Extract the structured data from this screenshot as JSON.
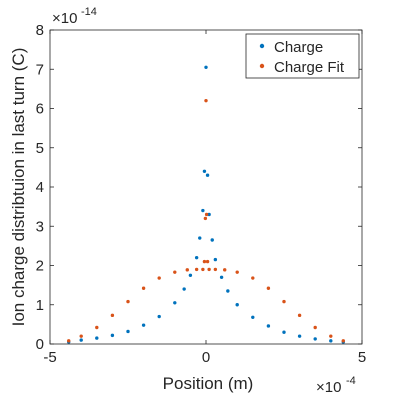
{
  "chart_data": {
    "type": "scatter",
    "title": "",
    "xlabel": "Position (m)",
    "ylabel": "Ion charge distribtuion in last turn (C)",
    "xlim": [
      -0.0005,
      0.0005
    ],
    "ylim": [
      0,
      8e-14
    ],
    "x_ticks": [
      -5,
      0,
      5
    ],
    "x_tick_labels": [
      "-5",
      "0",
      "5"
    ],
    "y_ticks": [
      0,
      1,
      2,
      3,
      4,
      5,
      6,
      7,
      8
    ],
    "y_tick_labels": [
      "0",
      "1",
      "2",
      "3",
      "4",
      "5",
      "6",
      "7",
      "8"
    ],
    "x_exponent_label": "×10",
    "x_exponent_power": "-4",
    "y_exponent_label": "×10",
    "y_exponent_power": "-14",
    "grid": false,
    "legend_position": "top-right",
    "series": [
      {
        "name": "Charge",
        "color": "#0072BD",
        "points": [
          [
            -0.00044,
            5e-16
          ],
          [
            -0.0004,
            1e-15
          ],
          [
            -0.00035,
            1.5e-15
          ],
          [
            -0.0003,
            2.2e-15
          ],
          [
            -0.00025,
            3.2e-15
          ],
          [
            -0.0002,
            4.8e-15
          ],
          [
            -0.00015,
            7e-15
          ],
          [
            -0.0001,
            1.05e-14
          ],
          [
            -7e-05,
            1.4e-14
          ],
          [
            -5e-05,
            1.75e-14
          ],
          [
            -3e-05,
            2.2e-14
          ],
          [
            -2e-05,
            2.7e-14
          ],
          [
            -1e-05,
            3.4e-14
          ],
          [
            -5e-06,
            4.4e-14
          ],
          [
            0.0,
            7.05e-14
          ],
          [
            5e-06,
            4.3e-14
          ],
          [
            1e-05,
            3.3e-14
          ],
          [
            2e-05,
            2.65e-14
          ],
          [
            3e-05,
            2.15e-14
          ],
          [
            5e-05,
            1.7e-14
          ],
          [
            7e-05,
            1.35e-14
          ],
          [
            0.0001,
            1e-14
          ],
          [
            0.00015,
            6.8e-15
          ],
          [
            0.0002,
            4.6e-15
          ],
          [
            0.00025,
            3e-15
          ],
          [
            0.0003,
            2e-15
          ],
          [
            0.00035,
            1.3e-15
          ],
          [
            0.0004,
            8e-16
          ],
          [
            0.00044,
            5e-16
          ]
        ]
      },
      {
        "name": "Charge Fit",
        "color": "#D95319",
        "points": [
          [
            -0.00044,
            8e-16
          ],
          [
            -0.0004,
            2e-15
          ],
          [
            -0.00035,
            4.2e-15
          ],
          [
            -0.0003,
            7.3e-15
          ],
          [
            -0.00025,
            1.08e-14
          ],
          [
            -0.0002,
            1.42e-14
          ],
          [
            -0.00015,
            1.68e-14
          ],
          [
            -0.0001,
            1.83e-14
          ],
          [
            -6e-05,
            1.89e-14
          ],
          [
            -3e-05,
            1.9e-14
          ],
          [
            -1e-05,
            1.9e-14
          ],
          [
            -5e-06,
            2.1e-14
          ],
          [
            -2e-06,
            3.2e-14
          ],
          [
            0.0,
            6.2e-14
          ],
          [
            2e-06,
            3.3e-14
          ],
          [
            5e-06,
            2.1e-14
          ],
          [
            1e-05,
            1.9e-14
          ],
          [
            3e-05,
            1.9e-14
          ],
          [
            6e-05,
            1.89e-14
          ],
          [
            0.0001,
            1.83e-14
          ],
          [
            0.00015,
            1.68e-14
          ],
          [
            0.0002,
            1.42e-14
          ],
          [
            0.00025,
            1.08e-14
          ],
          [
            0.0003,
            7.3e-15
          ],
          [
            0.00035,
            4.2e-15
          ],
          [
            0.0004,
            2e-15
          ],
          [
            0.00044,
            8e-16
          ]
        ]
      }
    ]
  }
}
